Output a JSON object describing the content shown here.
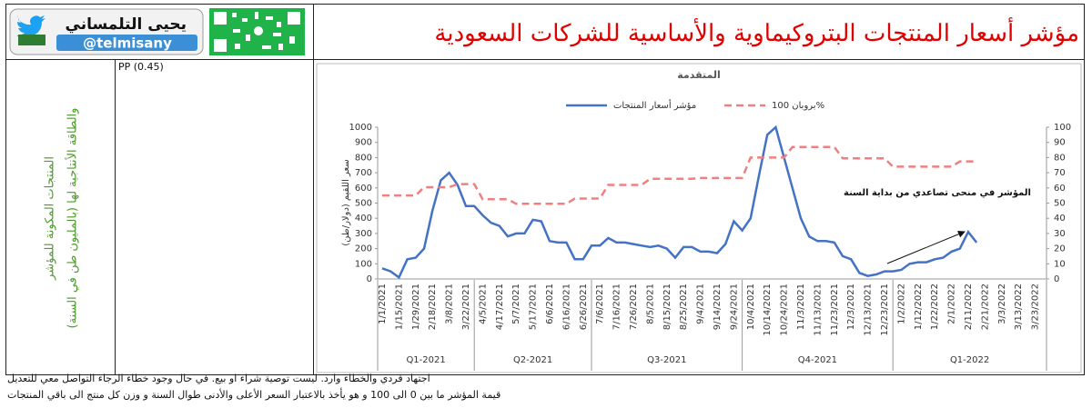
{
  "header": {
    "name": "يحيى التلمساني",
    "handle": "@telmisany",
    "title": "مؤشر أسعار المنتجات البتروكيماوية والأساسية للشركات السعودية"
  },
  "table": {
    "products_header": [
      "المنتجات المكونة للمؤشر",
      "والطاقة الأنتاجية لها (بالمليون طن في السنة)"
    ],
    "products": [
      "PP (0.45)"
    ]
  },
  "chart_data": {
    "type": "line",
    "title": "المتقدمة",
    "ylabel": "سعر اللقيم (دولار/طن)",
    "annotation": "المؤشر في منحى تصاعدي من بداية السنة",
    "categories": [
      "1/1/2021",
      null,
      "1/15/2021",
      null,
      "1/29/2021",
      null,
      "2/18/2021",
      null,
      "3/8/2021",
      null,
      "3/22/2021",
      null,
      "4/5/2021",
      null,
      "4/17/2021",
      null,
      "5/7/2021",
      null,
      "5/17/2021",
      null,
      "6/6/2021",
      null,
      "6/16/2021",
      null,
      "6/26/2021",
      null,
      "7/6/2021",
      null,
      "7/16/2021",
      null,
      "7/26/2021",
      null,
      "8/5/2021",
      null,
      "8/15/2021",
      null,
      "8/25/2021",
      null,
      "9/4/2021",
      null,
      "9/14/2021",
      null,
      "9/24/2021",
      null,
      "10/4/2021",
      null,
      "10/14/2021",
      null,
      "10/24/2021",
      null,
      "11/3/2021",
      null,
      "11/13/2021",
      null,
      "11/23/2021",
      null,
      "12/3/2021",
      null,
      "12/13/2021",
      null,
      "12/23/2021",
      null,
      "1/2/2022",
      null,
      "1/12/2022",
      null,
      "1/22/2022",
      null,
      "2/1/2022",
      null,
      "2/11/2022",
      null,
      "2/21/2022",
      null,
      "3/3/2022",
      null,
      "3/13/2022",
      null,
      "3/23/2022",
      null
    ],
    "quarters": [
      "Q1-2021",
      "Q2-2021",
      "Q3-2021",
      "Q4-2021",
      "Q1-2022"
    ],
    "series": [
      {
        "name": "مؤشر أسعار المنتجات",
        "color": "#4472c4",
        "line_style": "solid",
        "axis": "y2",
        "values": [
          7,
          5,
          1,
          13,
          14,
          20,
          45,
          65,
          70,
          62,
          48,
          48,
          42,
          37,
          35,
          28,
          30,
          30,
          39,
          38,
          25,
          24,
          24,
          13,
          13,
          22,
          22,
          27,
          24,
          24,
          23,
          22,
          21,
          22,
          20,
          14,
          21,
          21,
          18,
          18,
          17,
          23,
          38,
          32,
          40,
          68,
          95,
          100,
          80,
          60,
          40,
          28,
          25,
          25,
          24,
          15,
          13,
          4,
          2,
          3,
          5,
          5,
          6,
          10,
          11,
          11,
          13,
          14,
          18,
          20,
          31,
          24,
          null,
          null,
          null,
          null,
          null,
          null,
          null,
          null
        ]
      },
      {
        "name": "بروبان 100%",
        "color": "#f08080",
        "line_style": "dashed",
        "values": [
          550,
          550,
          550,
          550,
          550,
          605,
          605,
          605,
          605,
          625,
          625,
          625,
          525,
          525,
          525,
          525,
          495,
          495,
          495,
          495,
          495,
          495,
          495,
          530,
          530,
          530,
          530,
          620,
          620,
          620,
          620,
          620,
          660,
          660,
          660,
          660,
          660,
          660,
          665,
          665,
          665,
          665,
          665,
          665,
          800,
          800,
          800,
          800,
          800,
          870,
          870,
          870,
          870,
          870,
          870,
          795,
          795,
          795,
          795,
          795,
          795,
          740,
          740,
          740,
          740,
          740,
          740,
          740,
          740,
          775,
          775,
          775,
          null,
          null,
          null,
          null,
          null,
          null,
          null,
          null
        ]
      }
    ],
    "ylim": [
      0,
      1000
    ],
    "yticks": [
      0,
      100,
      200,
      300,
      400,
      500,
      600,
      700,
      800,
      900,
      1000
    ],
    "y2lim": [
      0,
      100
    ],
    "y2ticks": [
      0,
      10,
      20,
      30,
      40,
      50,
      60,
      70,
      80,
      90,
      100
    ],
    "grid": false
  },
  "footer": {
    "lines": [
      "اجتهاد فردي والخطاء وارد. ليست توصية شراء او بيع. في حال وجود خطاء الرجاء التواصل معي للتعديل",
      "قيمة المؤشر ما بين 0 الى 100 و هو يأخذ بالاعتبار السعر الأعلى والأدنى طوال السنة و وزن كل منتج الى باقي المنتجات"
    ]
  }
}
